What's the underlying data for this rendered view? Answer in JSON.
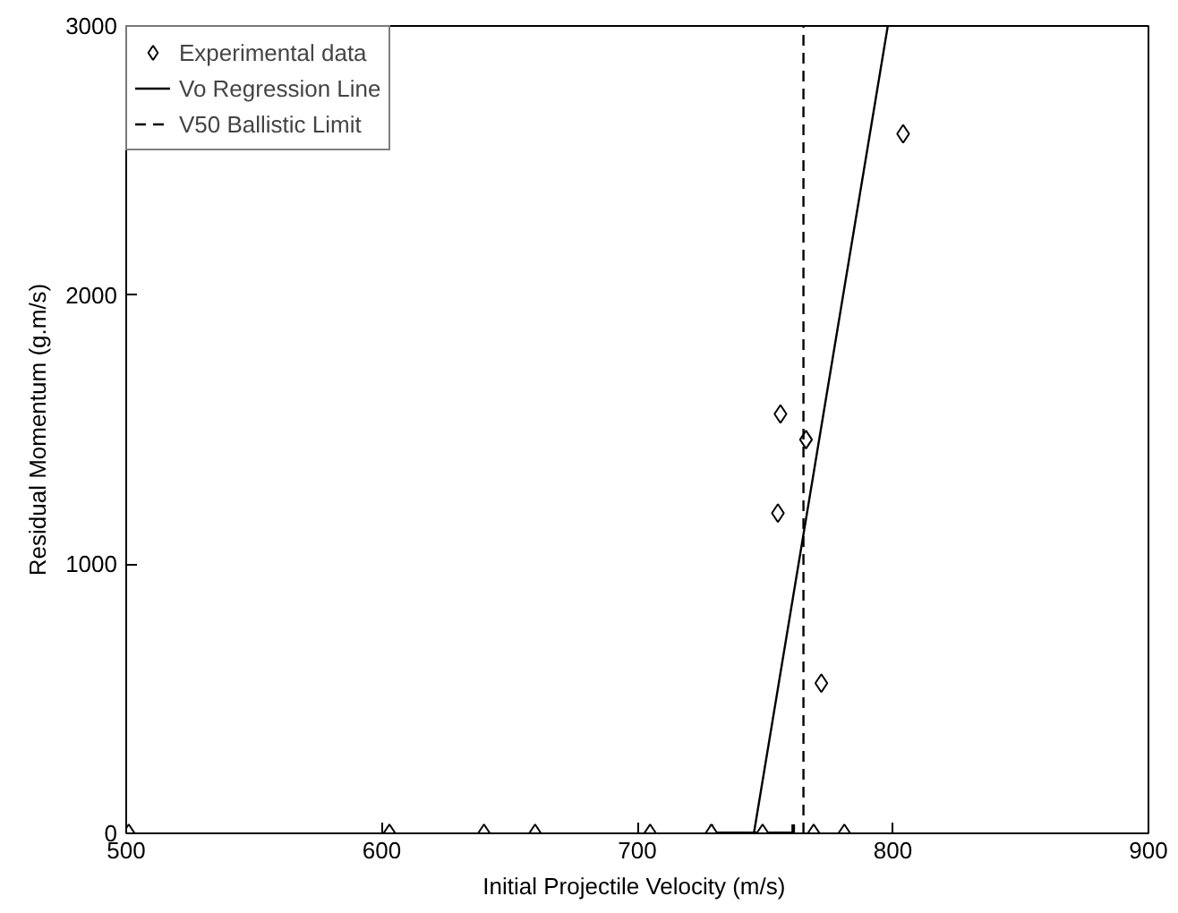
{
  "chart_data": {
    "type": "scatter",
    "xlabel": "Initial Projectile Velocity  (m/s)",
    "ylabel": "Residual Momentum (g.m/s)",
    "xlim": [
      500,
      900
    ],
    "ylim": [
      0,
      3000
    ],
    "xticks": [
      500,
      600,
      700,
      800,
      900
    ],
    "yticks": [
      0,
      1000,
      2000,
      3000
    ],
    "grid": false,
    "legend": "top left",
    "series": [
      {
        "name": "Experimental data",
        "marker": "diamond",
        "color": "#000000",
        "x": [
          501,
          603,
          640,
          660,
          705,
          729,
          749,
          769,
          781,
          756,
          766,
          755,
          804,
          772
        ],
        "values": [
          0,
          0,
          0,
          0,
          0,
          0,
          0,
          0,
          0,
          1558,
          1463,
          1190,
          2599,
          558
        ],
        "xerrors": [
          null,
          null,
          null,
          null,
          null,
          [
            729,
            761
          ],
          null,
          null,
          null,
          null,
          null,
          null,
          null,
          null
        ]
      },
      {
        "name": "Vo Regression Line",
        "type": "line",
        "line_style": "solid",
        "color": "#000000",
        "x": [
          745.6,
          798
        ],
        "values": [
          0,
          3000
        ]
      },
      {
        "name": "V50 Ballistic Limit",
        "type": "line",
        "line_style": "dashed",
        "color": "#000000",
        "x": [
          765,
          765
        ],
        "values": [
          0,
          3000
        ]
      }
    ]
  }
}
